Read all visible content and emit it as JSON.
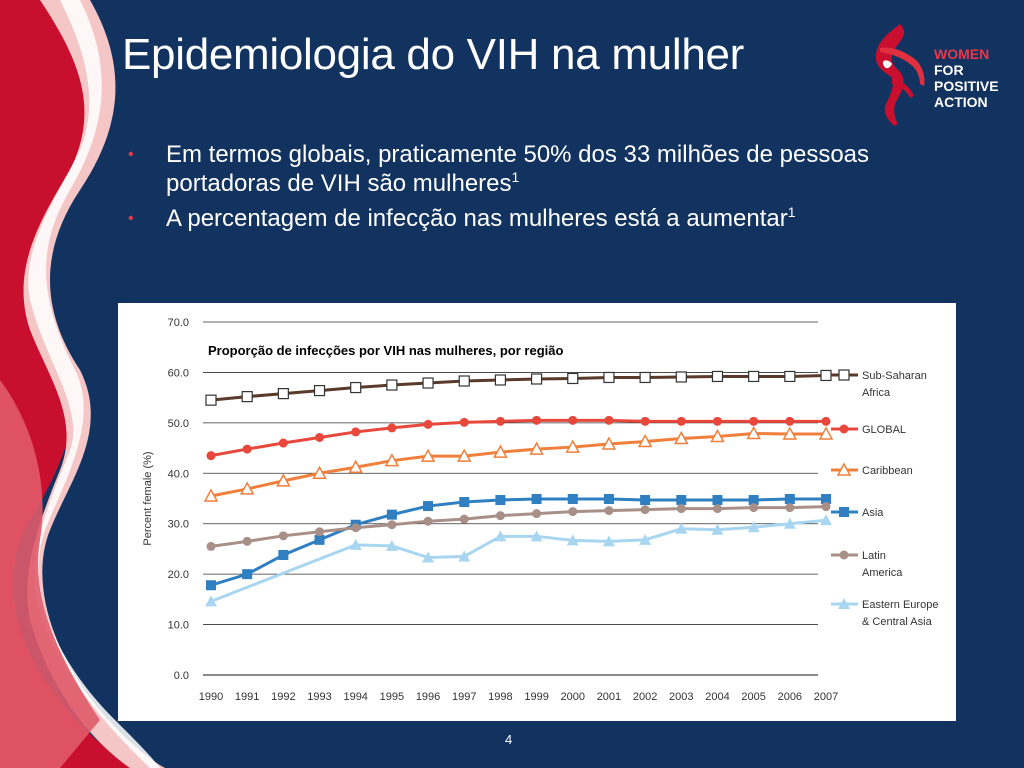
{
  "slide": {
    "title": "Epidemiologia do VIH na mulher",
    "bullets": [
      {
        "text": "Em termos globais, praticamente 50% dos 33 milhões de pessoas portadoras de VIH são mulheres",
        "sup": "1"
      },
      {
        "text": "A percentagem de infecção nas mulheres está a aumentar",
        "sup": "1"
      }
    ],
    "bullet_color": "#e8364a",
    "page_number": "4",
    "background_color": "#12335f"
  },
  "logo": {
    "line1": "WOMEN",
    "line2": "FOR",
    "line3": "POSITIVE",
    "line4": "ACTION",
    "accent_color": "#e8364a"
  },
  "chart_data": {
    "type": "line",
    "title": "Proporção de infecções por VIH nas mulheres, por região",
    "ylabel": "Percent female (%)",
    "xlabel": "",
    "ylim": [
      0,
      70
    ],
    "yticks": [
      "0.0",
      "10.0",
      "20.0",
      "30.0",
      "40.0",
      "50.0",
      "60.0",
      "70.0"
    ],
    "grid": true,
    "legend_position": "right",
    "categories": [
      "1990",
      "1991",
      "1992",
      "1993",
      "1994",
      "1995",
      "1996",
      "1997",
      "1998",
      "1999",
      "2000",
      "2001",
      "2002",
      "2003",
      "2004",
      "2005",
      "2006",
      "2007"
    ],
    "series": [
      {
        "name": "Sub-Saharan Africa",
        "legend_lines": [
          "Sub-Saharan",
          "Africa"
        ],
        "color": "#5a3a2a",
        "marker": "square-open",
        "values": [
          54.5,
          55.2,
          55.8,
          56.4,
          57.0,
          57.5,
          57.9,
          58.3,
          58.5,
          58.7,
          58.8,
          59.0,
          59.0,
          59.1,
          59.2,
          59.2,
          59.2,
          59.4
        ]
      },
      {
        "name": "GLOBAL",
        "legend_lines": [
          "GLOBAL"
        ],
        "color": "#e8473c",
        "marker": "circle",
        "values": [
          43.5,
          44.8,
          46.0,
          47.1,
          48.2,
          49.0,
          49.7,
          50.1,
          50.3,
          50.5,
          50.5,
          50.5,
          50.3,
          50.3,
          50.3,
          50.3,
          50.3,
          50.3
        ]
      },
      {
        "name": "Caribbean",
        "legend_lines": [
          "Caribbean"
        ],
        "color": "#f07f3c",
        "marker": "triangle-open",
        "values": [
          35.5,
          36.9,
          38.5,
          40.0,
          41.2,
          42.5,
          43.4,
          43.4,
          44.2,
          44.8,
          45.2,
          45.8,
          46.3,
          46.9,
          47.3,
          47.9,
          47.8,
          47.8
        ]
      },
      {
        "name": "Asia",
        "legend_lines": [
          "Asia"
        ],
        "color": "#2f7fc1",
        "marker": "square",
        "values": [
          17.8,
          20.0,
          23.8,
          26.8,
          29.8,
          31.8,
          33.5,
          34.3,
          34.7,
          34.9,
          34.9,
          34.9,
          34.7,
          34.7,
          34.7,
          34.7,
          34.9,
          34.9
        ]
      },
      {
        "name": "Latin America",
        "legend_lines": [
          "Latin",
          "America"
        ],
        "color": "#a89088",
        "marker": "circle",
        "values": [
          25.5,
          26.5,
          27.6,
          28.4,
          29.2,
          29.8,
          30.5,
          30.9,
          31.6,
          32.0,
          32.4,
          32.6,
          32.8,
          33.0,
          33.0,
          33.2,
          33.2,
          33.4
        ]
      },
      {
        "name": "Eastern Europe & Central Asia",
        "legend_lines": [
          "Eastern Europe",
          "& Central Asia"
        ],
        "color": "#a8d6f0",
        "marker": "triangle",
        "values": [
          14.6,
          null,
          null,
          null,
          25.8,
          25.6,
          23.3,
          23.5,
          27.5,
          27.5,
          26.7,
          26.5,
          26.8,
          29.0,
          28.8,
          29.3,
          30.0,
          30.7
        ]
      }
    ]
  }
}
